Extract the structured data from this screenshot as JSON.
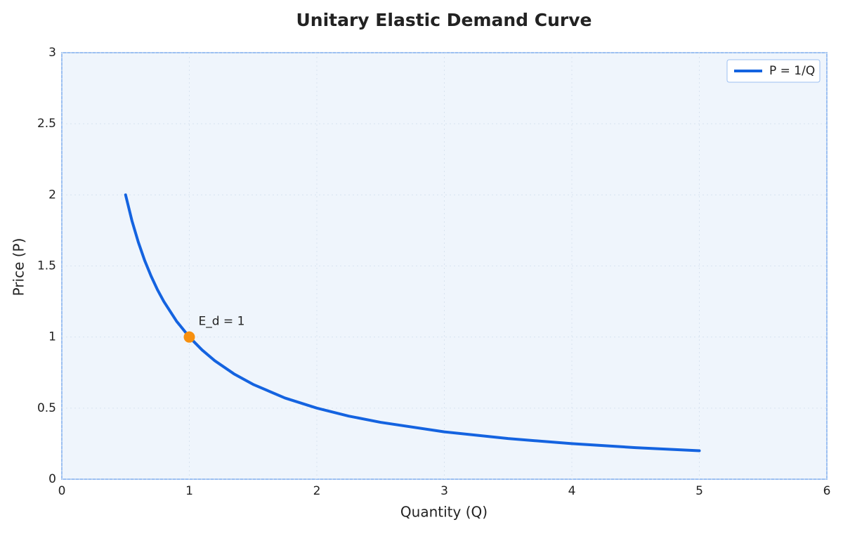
{
  "chart_data": {
    "type": "line",
    "title": "Unitary Elastic Demand Curve",
    "x_label": "Quantity (Q)",
    "y_label": "Price (P)",
    "x": [
      0.5,
      0.55,
      0.6,
      0.65,
      0.7,
      0.75,
      0.8,
      0.9,
      1,
      1.1,
      1.2,
      1.35,
      1.5,
      1.75,
      2,
      2.25,
      2.5,
      3,
      3.5,
      4,
      4.5,
      5
    ],
    "series": [
      {
        "name": "P = 1/Q",
        "color": "#1463e0",
        "values": [
          2,
          1.818,
          1.667,
          1.538,
          1.429,
          1.333,
          1.25,
          1.111,
          1,
          0.909,
          0.833,
          0.741,
          0.667,
          0.571,
          0.5,
          0.444,
          0.4,
          0.333,
          0.286,
          0.25,
          0.222,
          0.2
        ]
      }
    ],
    "highlight": {
      "x": 1,
      "y": 1,
      "label": "E_d = 1",
      "color": "#f7900f"
    },
    "xlim": [
      0,
      6
    ],
    "xticks": [
      0,
      1,
      2,
      3,
      4,
      5,
      6
    ],
    "ylim": [
      0,
      3
    ],
    "yticks": [
      0,
      0.5,
      1,
      1.5,
      2,
      2.5,
      3
    ],
    "grid": true,
    "legend": "upper right"
  }
}
